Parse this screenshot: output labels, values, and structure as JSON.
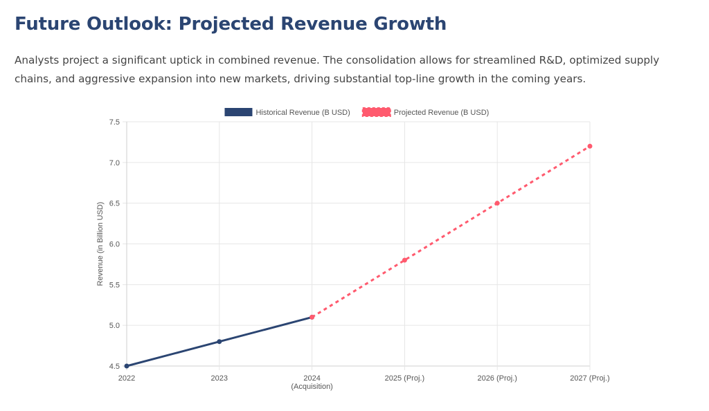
{
  "header": {
    "title": "Future Outlook: Projected Revenue Growth",
    "description": "Analysts project a significant uptick in combined revenue. The consolidation allows for streamlined R&D, optimized supply chains, and aggressive expansion into new markets, driving substantial top-line growth in the coming years."
  },
  "chart_data": {
    "type": "line",
    "title": "",
    "xlabel": "",
    "ylabel": "Revenue (in Billion USD)",
    "categories": [
      [
        "2022"
      ],
      [
        "2023"
      ],
      [
        "2024",
        "(Acquisition)"
      ],
      [
        "2025 (Proj.)"
      ],
      [
        "2026 (Proj.)"
      ],
      [
        "2027 (Proj.)"
      ]
    ],
    "ylim": [
      4.5,
      7.5
    ],
    "yticks": [
      "4.5",
      "5.0",
      "5.5",
      "6.0",
      "6.5",
      "7.0",
      "7.5"
    ],
    "grid": true,
    "legend_position": "top",
    "series": [
      {
        "name": "Historical Revenue (B USD)",
        "color": "#2b4572",
        "dashed": false,
        "values": [
          4.5,
          4.8,
          5.1,
          null,
          null,
          null
        ]
      },
      {
        "name": "Projected Revenue (B USD)",
        "color": "#ff5a6e",
        "dashed": true,
        "values": [
          null,
          null,
          5.1,
          5.8,
          6.5,
          7.2
        ]
      }
    ]
  }
}
